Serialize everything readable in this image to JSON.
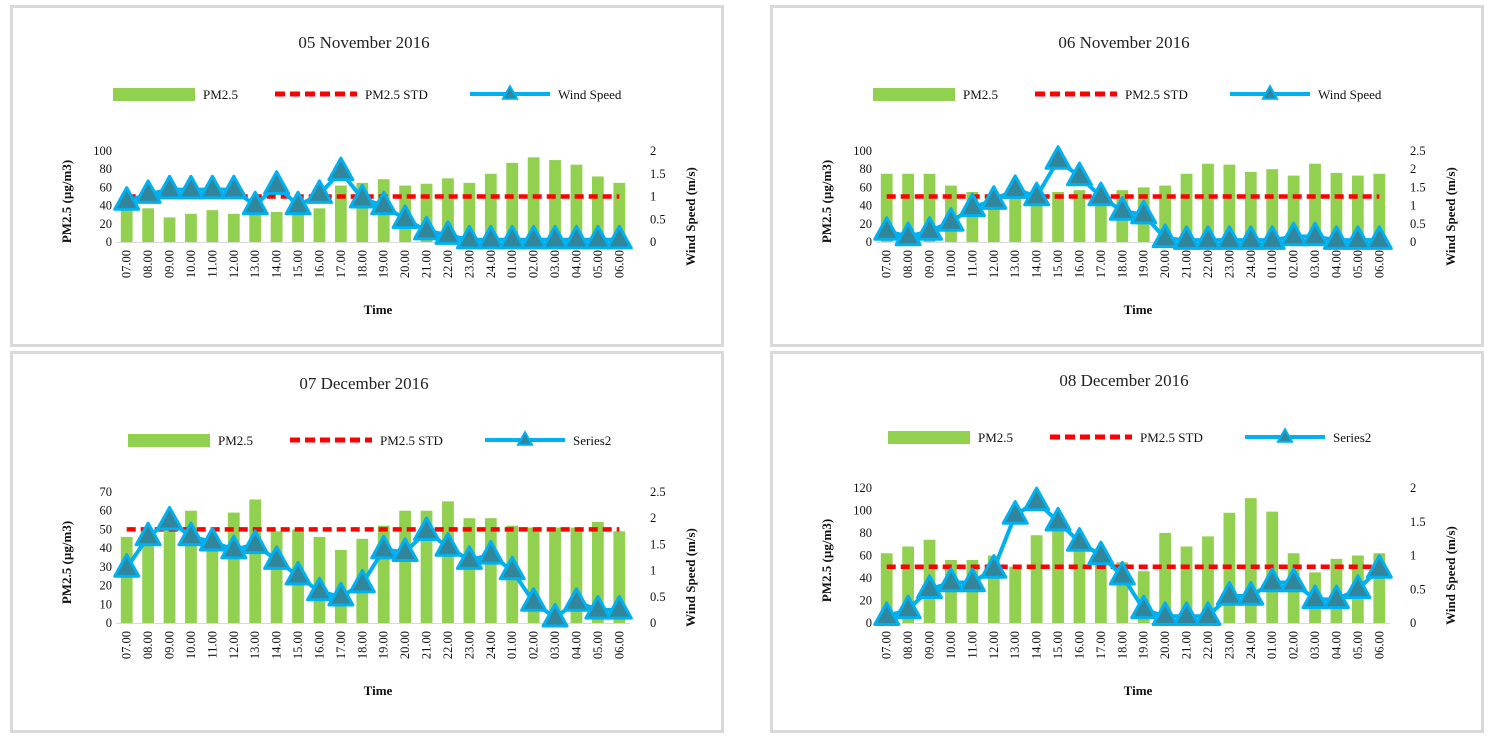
{
  "colors": {
    "bar": "#92d050",
    "std": "#ff0000",
    "wind": "#00b0f0",
    "wind_marker": "#31869b",
    "panel_border": "#d9d9d9"
  },
  "chart_data": [
    {
      "type": "bar",
      "title": "05 November 2016",
      "xlabel": "Time",
      "ylabel": "PM2.5 (µg/m3)",
      "y2label": "Wind Speed (m/s)",
      "categories": [
        "07.00",
        "08.00",
        "09.00",
        "10.00",
        "11.00",
        "12.00",
        "13.00",
        "14.00",
        "15.00",
        "16.00",
        "17.00",
        "18.00",
        "19.00",
        "20.00",
        "21.00",
        "22.00",
        "23.00",
        "24.00",
        "01.00",
        "02.00",
        "03.00",
        "04.00",
        "05.00",
        "06.00"
      ],
      "ylim": [
        0,
        100
      ],
      "yticks": [
        "0",
        "20",
        "40",
        "60",
        "80",
        "100"
      ],
      "y2lim": [
        0,
        2
      ],
      "y2ticks": [
        "0",
        "0.5",
        "1",
        "1.5",
        "2"
      ],
      "legend": [
        "PM2.5",
        "PM2.5 STD",
        "Wind Speed"
      ],
      "series": [
        {
          "name": "PM2.5",
          "type": "bar",
          "values": [
            37,
            37,
            27,
            31,
            35,
            31,
            38,
            33,
            47,
            37,
            62,
            65,
            69,
            62,
            64,
            70,
            65,
            75,
            87,
            93,
            90,
            85,
            72,
            65
          ]
        },
        {
          "name": "PM2.5 STD",
          "type": "dashed-line",
          "values": [
            50,
            50,
            50,
            50,
            50,
            50,
            50,
            50,
            50,
            50,
            50,
            50,
            50,
            50,
            50,
            50,
            50,
            50,
            50,
            50,
            50,
            50,
            50,
            50
          ]
        },
        {
          "name": "Wind Speed",
          "type": "line-triangle",
          "axis": "y2",
          "values": [
            0.9,
            1.05,
            1.15,
            1.15,
            1.15,
            1.15,
            0.8,
            1.25,
            0.8,
            1.05,
            1.55,
            0.95,
            0.8,
            0.5,
            0.25,
            0.15,
            0.05,
            0.05,
            0.05,
            0.05,
            0.05,
            0.05,
            0.05,
            0.05
          ]
        }
      ]
    },
    {
      "type": "bar",
      "title": "06 November 2016",
      "xlabel": "Time",
      "ylabel": "PM2.5 (µg/m3)",
      "y2label": "Wind Speed (m/s)",
      "categories": [
        "07.00",
        "08.00",
        "09.00",
        "10.00",
        "11.00",
        "12.00",
        "13.00",
        "14.00",
        "15.00",
        "16.00",
        "17.00",
        "18.00",
        "19.00",
        "20.00",
        "21.00",
        "22.00",
        "23.00",
        "24.00",
        "01.00",
        "02.00",
        "03.00",
        "04.00",
        "05.00",
        "06.00"
      ],
      "ylim": [
        0,
        100
      ],
      "yticks": [
        "0",
        "20",
        "40",
        "60",
        "80",
        "100"
      ],
      "y2lim": [
        0,
        2.5
      ],
      "y2ticks": [
        "0",
        "0.5",
        "1",
        "1.5",
        "2",
        "2.5"
      ],
      "legend": [
        "PM2.5",
        "PM2.5 STD",
        "Wind Speed"
      ],
      "series": [
        {
          "name": "PM2.5",
          "type": "bar",
          "values": [
            75,
            75,
            75,
            62,
            55,
            52,
            62,
            55,
            55,
            57,
            55,
            57,
            60,
            62,
            75,
            86,
            85,
            77,
            80,
            73,
            86,
            76,
            73,
            75
          ]
        },
        {
          "name": "PM2.5 STD",
          "type": "dashed-line",
          "values": [
            50,
            50,
            50,
            50,
            50,
            50,
            50,
            50,
            50,
            50,
            50,
            50,
            50,
            50,
            50,
            50,
            50,
            50,
            50,
            50,
            50,
            50,
            50,
            50
          ]
        },
        {
          "name": "Wind Speed",
          "type": "line-triangle",
          "axis": "y2",
          "values": [
            0.3,
            0.15,
            0.3,
            0.55,
            0.95,
            1.15,
            1.45,
            1.25,
            2.25,
            1.8,
            1.25,
            0.85,
            0.75,
            0.1,
            0.05,
            0.05,
            0.05,
            0.05,
            0.05,
            0.15,
            0.15,
            0.05,
            0.05,
            0.05
          ]
        }
      ]
    },
    {
      "type": "bar",
      "title": "07 December 2016",
      "xlabel": "Time",
      "ylabel": "PM2.5 (µg/m3)",
      "y2label": "Wind Speed (m/s)",
      "categories": [
        "07.00",
        "08.00",
        "09.00",
        "10.00",
        "11.00",
        "12.00",
        "13.00",
        "14.00",
        "15.00",
        "16.00",
        "17.00",
        "18.00",
        "19.00",
        "20.00",
        "21.00",
        "22.00",
        "23.00",
        "24.00",
        "01.00",
        "02.00",
        "03.00",
        "04.00",
        "05.00",
        "06.00"
      ],
      "ylim": [
        0,
        70
      ],
      "yticks": [
        "0",
        "10",
        "20",
        "30",
        "40",
        "50",
        "60",
        "70"
      ],
      "y2lim": [
        0,
        2.5
      ],
      "y2ticks": [
        "0",
        "0.5",
        "1",
        "1.5",
        "2",
        "2.5"
      ],
      "legend": [
        "PM2.5",
        "PM2.5 STD",
        "Series2"
      ],
      "series": [
        {
          "name": "PM2.5",
          "type": "bar",
          "values": [
            46,
            48,
            56,
            60,
            47,
            59,
            66,
            49,
            50,
            46,
            39,
            45,
            52,
            60,
            60,
            65,
            56,
            56,
            52,
            51,
            51,
            51,
            54,
            49
          ]
        },
        {
          "name": "PM2.5 STD",
          "type": "dashed-line",
          "values": [
            50,
            50,
            50,
            50,
            50,
            50,
            50,
            50,
            50,
            50,
            50,
            50,
            50,
            50,
            50,
            50,
            50,
            50,
            50,
            50,
            50,
            50,
            50,
            50
          ]
        },
        {
          "name": "Series2",
          "type": "line-triangle",
          "axis": "y2",
          "values": [
            1.05,
            1.65,
            1.95,
            1.65,
            1.55,
            1.4,
            1.5,
            1.2,
            0.9,
            0.6,
            0.5,
            0.75,
            1.4,
            1.35,
            1.75,
            1.45,
            1.2,
            1.3,
            1.0,
            0.4,
            0.1,
            0.4,
            0.25,
            0.25
          ]
        }
      ]
    },
    {
      "type": "bar",
      "title": "08 December 2016",
      "xlabel": "Time",
      "ylabel": "PM2.5 (µg/m3)",
      "y2label": "Wind Speed (m/s)",
      "categories": [
        "07.00",
        "08.00",
        "09.00",
        "10.00",
        "11.00",
        "12.00",
        "13.00",
        "14.00",
        "15.00",
        "16.00",
        "17.00",
        "18.00",
        "19.00",
        "20.00",
        "21.00",
        "22.00",
        "23.00",
        "24.00",
        "01.00",
        "02.00",
        "03.00",
        "04.00",
        "05.00",
        "06.00"
      ],
      "ylim": [
        0,
        120
      ],
      "yticks": [
        "0",
        "20",
        "40",
        "60",
        "80",
        "100",
        "120"
      ],
      "y2lim": [
        0,
        2
      ],
      "y2ticks": [
        "0",
        "0.5",
        "1",
        "1.5",
        "2"
      ],
      "legend": [
        "PM2.5",
        "PM2.5 STD",
        "Series2"
      ],
      "series": [
        {
          "name": "PM2.5",
          "type": "bar",
          "values": [
            62,
            68,
            74,
            56,
            56,
            60,
            50,
            78,
            84,
            74,
            66,
            54,
            46,
            80,
            68,
            77,
            98,
            111,
            99,
            62,
            45,
            57,
            60,
            62
          ]
        },
        {
          "name": "PM2.5 STD",
          "type": "dashed-line",
          "values": [
            50,
            50,
            50,
            50,
            50,
            50,
            50,
            50,
            50,
            50,
            50,
            50,
            50,
            50,
            50,
            50,
            50,
            50,
            50,
            50,
            50,
            50,
            50,
            50
          ]
        },
        {
          "name": "Series2",
          "type": "line-triangle",
          "axis": "y2",
          "values": [
            0.1,
            0.2,
            0.5,
            0.6,
            0.6,
            0.8,
            1.6,
            1.8,
            1.5,
            1.2,
            1.0,
            0.7,
            0.2,
            0.1,
            0.1,
            0.1,
            0.4,
            0.4,
            0.6,
            0.6,
            0.35,
            0.35,
            0.5,
            0.8
          ]
        }
      ]
    }
  ]
}
